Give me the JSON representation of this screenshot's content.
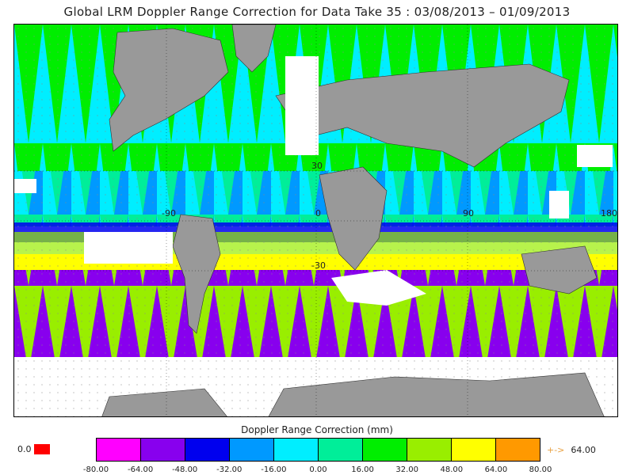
{
  "title": "Global LRM Doppler Range Correction for Data Take 35 : 03/08/2013 – 01/09/2013",
  "grid_labels": {
    "lon_m90": "-90",
    "lon_0": "0",
    "lon_90": "90",
    "lon_180": "180",
    "lat_30": "30",
    "lat_m30": "-30"
  },
  "legend": {
    "title": "Doppler Range Correction (mm)",
    "ticks": [
      "-80.00",
      "-64.00",
      "-48.00",
      "-32.00",
      "-16.00",
      "0.00",
      "16.00",
      "32.00",
      "48.00",
      "64.00",
      "80.00"
    ],
    "colors": [
      "#ff00ff",
      "#8800ee",
      "#0000ee",
      "#0099ff",
      "#00eeff",
      "#00ee99",
      "#00ee00",
      "#99ee00",
      "#ffff00",
      "#ff9900"
    ],
    "missing_value": "0.0",
    "missing_color": "#ff0000",
    "overflow_arrow": "+->",
    "overflow_value": "64.00"
  }
}
